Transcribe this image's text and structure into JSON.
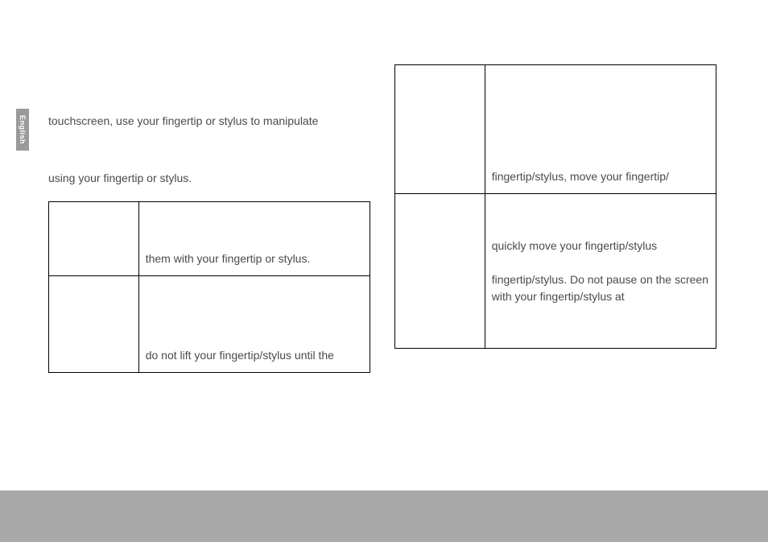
{
  "side_tab": "English",
  "left": {
    "para1": "touchscreen, use your fingertip or stylus to manipulate",
    "para2": "using your fingertip or stylus.",
    "rows": [
      {
        "label": "",
        "desc": "them with your fingertip or stylus."
      },
      {
        "label": "",
        "desc": "do not lift your fingertip/stylus until the"
      }
    ]
  },
  "right": {
    "rows": [
      {
        "label": "",
        "desc": "fingertip/stylus, move your fingertip/"
      },
      {
        "label": "",
        "desc": "quickly move your fingertip/stylus\n\nfingertip/stylus. Do not pause on the screen with your fingertip/stylus at"
      }
    ]
  }
}
